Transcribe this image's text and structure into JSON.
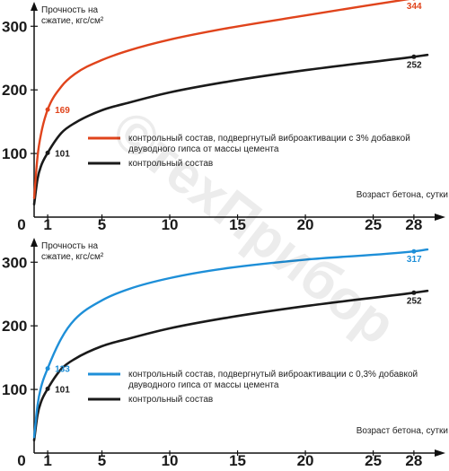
{
  "chart_data": [
    {
      "type": "line",
      "ylabel": "Прочность на сжатие, кгс/см²",
      "xlabel": "Возраст бетона, сутки",
      "x_ticks": [
        "0",
        "1",
        "5",
        "10",
        "15",
        "20",
        "25",
        "28"
      ],
      "y_ticks": [
        "100",
        "200",
        "300"
      ],
      "xlim": [
        0,
        29
      ],
      "ylim": [
        0,
        330
      ],
      "series": [
        {
          "name": "контрольный состав, подвергнутый виброактивации с 3% добавкой двуводного гипса от массы цемента",
          "color": "#e0441c",
          "x": [
            0,
            0.25,
            0.5,
            1,
            2,
            3,
            5,
            7,
            10,
            14,
            20,
            28,
            29
          ],
          "y": [
            30,
            95,
            130,
            169,
            205,
            225,
            247,
            262,
            279,
            296,
            317,
            344,
            347
          ]
        },
        {
          "name": "контрольный состав",
          "color": "#1a1a1a",
          "x": [
            0,
            0.25,
            0.5,
            1,
            2,
            3,
            5,
            7,
            10,
            14,
            20,
            28,
            29
          ],
          "y": [
            20,
            60,
            80,
            101,
            132,
            148,
            168,
            180,
            196,
            212,
            231,
            252,
            255
          ]
        }
      ],
      "point_labels": [
        {
          "series": 0,
          "x": 1,
          "y": 169,
          "text": "169"
        },
        {
          "series": 0,
          "x": 28,
          "y": 344,
          "text": "344"
        },
        {
          "series": 1,
          "x": 1,
          "y": 101,
          "text": "101"
        },
        {
          "series": 1,
          "x": 28,
          "y": 252,
          "text": "252"
        }
      ],
      "legend": [
        {
          "text": "контрольный состав, подвергнутый виброактивации с 3% добавкой",
          "text2": "двуводного гипса от массы цемента",
          "color": "#e0441c"
        },
        {
          "text": "контрольный состав",
          "text2": "",
          "color": "#1a1a1a"
        }
      ]
    },
    {
      "type": "line",
      "ylabel": "Прочность на сжатие, кгс/см²",
      "xlabel": "Возраст бетона, сутки",
      "x_ticks": [
        "0",
        "1",
        "5",
        "10",
        "15",
        "20",
        "25",
        "28"
      ],
      "y_ticks": [
        "100",
        "200",
        "300"
      ],
      "xlim": [
        0,
        29
      ],
      "ylim": [
        0,
        330
      ],
      "series": [
        {
          "name": "контрольный состав, подвергнутый виброактивации с 0,3% добавкой двуводного гипса от массы цемента",
          "color": "#1e8fd8",
          "x": [
            0,
            0.25,
            0.5,
            1,
            2,
            3,
            5,
            7,
            10,
            14,
            20,
            28,
            29
          ],
          "y": [
            25,
            75,
            103,
            133,
            180,
            210,
            240,
            258,
            275,
            290,
            304,
            317,
            320
          ]
        },
        {
          "name": "контрольный состав",
          "color": "#1a1a1a",
          "x": [
            0,
            0.25,
            0.5,
            1,
            2,
            3,
            5,
            7,
            10,
            14,
            20,
            28,
            29
          ],
          "y": [
            20,
            60,
            80,
            101,
            132,
            148,
            168,
            180,
            196,
            212,
            231,
            252,
            255
          ]
        }
      ],
      "point_labels": [
        {
          "series": 0,
          "x": 1,
          "y": 133,
          "text": "133"
        },
        {
          "series": 0,
          "x": 28,
          "y": 317,
          "text": "317"
        },
        {
          "series": 1,
          "x": 1,
          "y": 101,
          "text": "101"
        },
        {
          "series": 1,
          "x": 28,
          "y": 252,
          "text": "252"
        }
      ],
      "legend": [
        {
          "text": "контрольный состав, подвергнутый виброактивации с 0,3% добавкой",
          "text2": "двуводного гипса от массы цемента",
          "color": "#1e8fd8"
        },
        {
          "text": "контрольный состав",
          "text2": "",
          "color": "#1a1a1a"
        }
      ]
    }
  ],
  "watermark": {
    "text": "©техПрибор",
    "color": "#e8e8e8"
  }
}
